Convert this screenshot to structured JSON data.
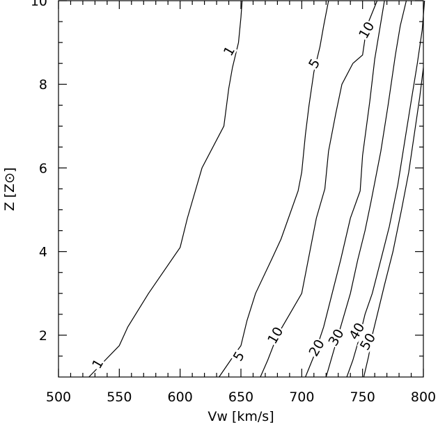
{
  "chart_data": {
    "type": "contour",
    "xlabel": "Vw [km/s]",
    "ylabel": "Z [Z⊙]",
    "xlim": [
      500,
      800
    ],
    "ylim": [
      1,
      10
    ],
    "x_ticks": [
      500,
      550,
      600,
      650,
      700,
      750,
      800
    ],
    "y_ticks": [
      2,
      4,
      6,
      8,
      10
    ],
    "x_minor_ticks": [
      510,
      520,
      530,
      540,
      560,
      570,
      580,
      590,
      610,
      620,
      630,
      640,
      660,
      670,
      680,
      690,
      710,
      720,
      730,
      740,
      760,
      770,
      780,
      790
    ],
    "y_minor_ticks": [
      1.5,
      2.5,
      3,
      3.5,
      4.5,
      5,
      5.5,
      6.5,
      7,
      7.5,
      8.5,
      9,
      9.5
    ],
    "grid": false,
    "legend": "none",
    "contours": [
      {
        "label": "1",
        "points": [
          [
            525,
            1.0
          ],
          [
            535,
            1.3
          ],
          [
            550,
            1.75
          ],
          [
            557,
            2.2
          ],
          [
            574,
            3.0
          ],
          [
            600,
            4.1
          ],
          [
            606,
            4.8
          ],
          [
            618,
            6.0
          ],
          [
            636,
            7.0
          ],
          [
            640,
            7.9
          ],
          [
            643,
            8.4
          ],
          [
            648,
            9.0
          ],
          [
            650,
            9.6
          ],
          [
            651,
            10.0
          ]
        ],
        "label_positions": [
          [
            532,
            1.32
          ],
          [
            640,
            8.8
          ]
        ]
      },
      {
        "label": "5",
        "points": [
          [
            632,
            1.0
          ],
          [
            645,
            1.55
          ],
          [
            650,
            1.75
          ],
          [
            655,
            2.35
          ],
          [
            662,
            3.0
          ],
          [
            675,
            3.8
          ],
          [
            683,
            4.3
          ],
          [
            697,
            5.45
          ],
          [
            700,
            5.9
          ],
          [
            703,
            6.8
          ],
          [
            706,
            7.5
          ],
          [
            710,
            8.3
          ],
          [
            715,
            8.9
          ],
          [
            718,
            9.4
          ],
          [
            722,
            10.0
          ]
        ],
        "label_positions": [
          [
            648,
            1.5
          ],
          [
            710,
            8.5
          ]
        ]
      },
      {
        "label": "10",
        "points": [
          [
            666,
            1.0
          ],
          [
            672,
            1.4
          ],
          [
            680,
            2.0
          ],
          [
            690,
            2.5
          ],
          [
            700,
            3.0
          ],
          [
            706,
            3.9
          ],
          [
            712,
            4.8
          ],
          [
            719,
            5.5
          ],
          [
            722,
            6.4
          ],
          [
            728,
            7.3
          ],
          [
            733,
            8.0
          ],
          [
            742,
            8.5
          ],
          [
            750,
            8.7
          ],
          [
            752,
            9.1
          ],
          [
            755,
            9.5
          ],
          [
            762,
            10.0
          ]
        ],
        "label_positions": [
          [
            678,
            2.0
          ],
          [
            753,
            9.3
          ]
        ]
      },
      {
        "label": "20",
        "points": [
          [
            703,
            1.0
          ],
          [
            710,
            1.5
          ],
          [
            718,
            2.2
          ],
          [
            725,
            3.0
          ],
          [
            732,
            3.8
          ],
          [
            740,
            4.8
          ],
          [
            748,
            5.45
          ],
          [
            750,
            6.3
          ],
          [
            756,
            7.6
          ],
          [
            760,
            8.6
          ],
          [
            764,
            9.3
          ],
          [
            768,
            10.0
          ]
        ],
        "label_positions": [
          [
            712,
            1.7
          ]
        ]
      },
      {
        "label": "30",
        "points": [
          [
            720,
            1.0
          ],
          [
            725,
            1.5
          ],
          [
            732,
            2.2
          ],
          [
            740,
            3.0
          ],
          [
            746,
            3.8
          ],
          [
            752,
            4.5
          ],
          [
            757,
            5.2
          ],
          [
            765,
            6.4
          ],
          [
            771,
            7.5
          ],
          [
            777,
            8.7
          ],
          [
            781,
            9.4
          ],
          [
            786,
            10.0
          ]
        ],
        "label_positions": [
          [
            728,
            1.95
          ]
        ]
      },
      {
        "label": "40",
        "points": [
          [
            737,
            1.0
          ],
          [
            742,
            1.4
          ],
          [
            747,
            1.9
          ],
          [
            752,
            2.5
          ],
          [
            758,
            3.0
          ],
          [
            765,
            3.8
          ],
          [
            772,
            4.6
          ],
          [
            779,
            5.6
          ],
          [
            785,
            6.7
          ],
          [
            790,
            7.6
          ],
          [
            795,
            8.5
          ],
          [
            799,
            9.3
          ],
          [
            801,
            10.0
          ]
        ],
        "label_positions": [
          [
            745,
            2.1
          ]
        ]
      },
      {
        "label": "50",
        "points": [
          [
            751,
            1.0
          ],
          [
            755,
            1.5
          ],
          [
            758,
            2.0
          ],
          [
            763,
            2.6
          ],
          [
            768,
            3.2
          ],
          [
            775,
            4.0
          ],
          [
            782,
            5.0
          ],
          [
            788,
            5.9
          ],
          [
            793,
            6.9
          ],
          [
            797,
            7.7
          ],
          [
            800,
            8.4
          ]
        ],
        "label_positions": [
          [
            754,
            1.85
          ]
        ]
      }
    ]
  }
}
